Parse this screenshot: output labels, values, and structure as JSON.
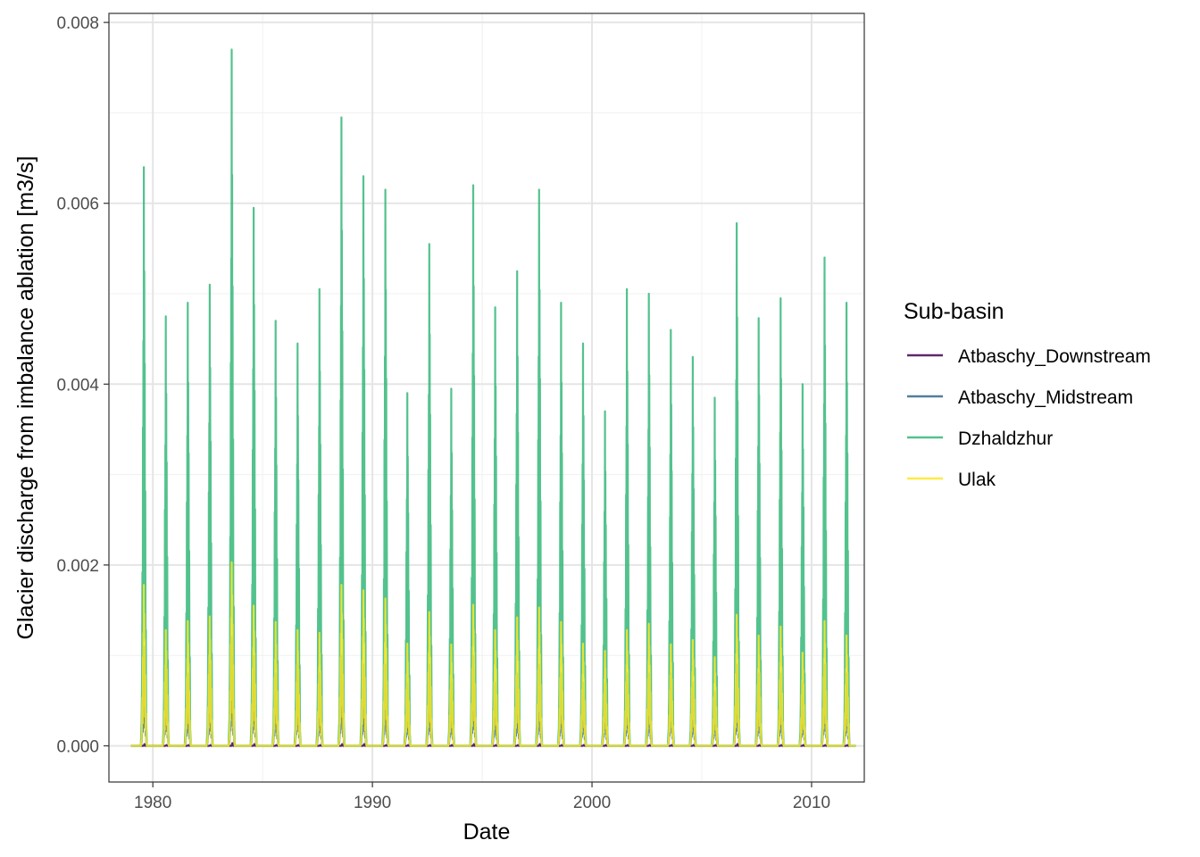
{
  "chart_data": {
    "type": "line",
    "xlabel": "Date",
    "ylabel": "Glacier discharge from imbalance ablation [m3/s]",
    "xlim": [
      1978.0,
      2012.4
    ],
    "ylim": [
      -0.0004,
      0.0081
    ],
    "x_ticks": [
      1980,
      1990,
      2000,
      2010
    ],
    "x_tick_labels": [
      "1980",
      "1990",
      "2000",
      "2010"
    ],
    "y_ticks": [
      0.0,
      0.002,
      0.004,
      0.006,
      0.008
    ],
    "y_tick_labels": [
      "0.000",
      "0.002",
      "0.004",
      "0.006",
      "0.008"
    ],
    "grid": true,
    "legend_title": "Sub-basin",
    "legend_position": "right",
    "series": [
      {
        "name": "Atbaschy_Downstream",
        "color": "#440154",
        "x": [
          "1979.0",
          "1979.58",
          "1979.62",
          "1979.66",
          "1979.72",
          "1980.58",
          "1980.62",
          "1980.66",
          "1980.72",
          "1981.58",
          "1981.62",
          "1981.66",
          "1981.72",
          "1982.58",
          "1982.62",
          "1982.66",
          "1982.72",
          "1983.58",
          "1983.62",
          "1983.66",
          "1983.72",
          "1984.58",
          "1984.62",
          "1984.66",
          "1984.72",
          "1985.58",
          "1985.62",
          "1985.66",
          "1985.72",
          "1986.58",
          "1986.62",
          "1986.66",
          "1986.72",
          "1987.58",
          "1987.62",
          "1987.66",
          "1987.72",
          "1988.58",
          "1988.62",
          "1988.66",
          "1988.72",
          "1989.58",
          "1989.62",
          "1989.66",
          "1989.72",
          "1990.58",
          "1990.62",
          "1990.66",
          "1990.72",
          "1991.58",
          "1991.62",
          "1991.66",
          "1991.72",
          "1992.58",
          "1992.62",
          "1992.66",
          "1992.72",
          "1993.58",
          "1993.62",
          "1993.66",
          "1993.72",
          "1994.58",
          "1994.62",
          "1994.66",
          "1994.72",
          "1995.58",
          "1995.62",
          "1995.66",
          "1995.72",
          "1996.58",
          "1996.62",
          "1996.66",
          "1996.72",
          "1997.58",
          "1997.62",
          "1997.66",
          "1997.72",
          "1998.58",
          "1998.62",
          "1998.66",
          "1998.72",
          "1999.58",
          "1999.62",
          "1999.66",
          "1999.72",
          "2000.58",
          "2000.62",
          "2000.66",
          "2000.72",
          "2001.58",
          "2001.62",
          "2001.66",
          "2001.72",
          "2002.58",
          "2002.62",
          "2002.66",
          "2002.72",
          "2003.58",
          "2003.62",
          "2003.66",
          "2003.72",
          "2004.58",
          "2004.62",
          "2004.66",
          "2004.72",
          "2005.58",
          "2005.62",
          "2005.66",
          "2005.72",
          "2006.58",
          "2006.62",
          "2006.66",
          "2006.72",
          "2007.58",
          "2007.62",
          "2007.66",
          "2007.72",
          "2008.58",
          "2008.62",
          "2008.66",
          "2008.72",
          "2009.58",
          "2009.62",
          "2009.66",
          "2009.72",
          "2010.58",
          "2010.62",
          "2010.66",
          "2010.72",
          "2011.58",
          "2011.62",
          "2011.66",
          "2011.72",
          "2012.0"
        ],
        "y": [
          0,
          0,
          2e-05,
          0,
          0,
          0,
          1e-05,
          0,
          0,
          0,
          1e-05,
          0,
          0,
          0,
          1e-05,
          0,
          0,
          0,
          3e-05,
          0,
          0,
          0,
          2e-05,
          0,
          0,
          0,
          1e-05,
          0,
          0,
          0,
          1e-05,
          0,
          0,
          0,
          1e-05,
          0,
          0,
          0,
          2e-05,
          0,
          0,
          0,
          2e-05,
          0,
          0,
          0,
          1e-05,
          0,
          0,
          0,
          1e-05,
          0,
          0,
          0,
          1e-05,
          0,
          0,
          0,
          1e-05,
          0,
          0,
          0,
          2e-05,
          0,
          0,
          0,
          1e-05,
          0,
          0,
          0,
          1e-05,
          0,
          0,
          0,
          2e-05,
          0,
          0,
          0,
          1e-05,
          0,
          0,
          0,
          1e-05,
          0,
          0,
          0,
          1e-05,
          0,
          0,
          0,
          1e-05,
          0,
          0,
          0,
          1e-05,
          0,
          0,
          0,
          1e-05,
          0,
          0,
          0,
          1e-05,
          0,
          0,
          0,
          1e-05,
          0,
          0,
          0,
          2e-05,
          0,
          0,
          0,
          1e-05,
          0,
          0,
          0,
          1e-05,
          0,
          0,
          0,
          1e-05,
          0,
          0,
          0,
          1e-05,
          0,
          0,
          0,
          1e-05,
          0,
          0,
          0
        ]
      },
      {
        "name": "Atbaschy_Midstream",
        "color": "#31688e",
        "peaks_x": [
          1979.6,
          1980.6,
          1981.6,
          1982.6,
          1983.6,
          1984.6,
          1985.6,
          1986.6,
          1987.6,
          1988.6,
          1989.6,
          1990.6,
          1991.6,
          1992.6,
          1993.6,
          1994.6,
          1995.6,
          1996.6,
          1997.6,
          1998.6,
          1999.6,
          2000.6,
          2001.6,
          2002.6,
          2003.6,
          2004.6,
          2005.6,
          2006.6,
          2007.6,
          2008.6,
          2009.6,
          2010.6,
          2011.6
        ],
        "peaks_y": [
          0.0011,
          0.0009,
          0.0008,
          0.0009,
          0.0012,
          0.001,
          0.0008,
          0.0009,
          0.0008,
          0.001,
          0.0009,
          0.0009,
          0.0007,
          0.0009,
          0.0007,
          0.001,
          0.0007,
          0.0008,
          0.0009,
          0.0008,
          0.0007,
          0.0007,
          0.0008,
          0.0008,
          0.0008,
          0.0007,
          0.0006,
          0.0009,
          0.0008,
          0.0008,
          0.0007,
          0.0009,
          0.0008
        ]
      },
      {
        "name": "Dzhaldzhur",
        "color": "#35b779",
        "peaks_x": [
          1979.6,
          1980.6,
          1981.6,
          1982.6,
          1983.6,
          1984.6,
          1985.6,
          1986.6,
          1987.6,
          1988.6,
          1989.6,
          1990.6,
          1991.6,
          1992.6,
          1993.6,
          1994.6,
          1995.6,
          1996.6,
          1997.6,
          1998.6,
          1999.6,
          2000.6,
          2001.6,
          2002.6,
          2003.6,
          2004.6,
          2005.6,
          2006.6,
          2007.6,
          2008.6,
          2009.6,
          2010.6,
          2011.6
        ],
        "peaks_y": [
          0.0064,
          0.00475,
          0.0049,
          0.0051,
          0.0077,
          0.00595,
          0.0047,
          0.00445,
          0.00505,
          0.00695,
          0.0063,
          0.00615,
          0.0039,
          0.00555,
          0.00395,
          0.0062,
          0.00485,
          0.00525,
          0.00615,
          0.0049,
          0.00445,
          0.0037,
          0.00505,
          0.005,
          0.0046,
          0.0043,
          0.00385,
          0.00578,
          0.00473,
          0.00495,
          0.004,
          0.0054,
          0.0049
        ]
      },
      {
        "name": "Ulak",
        "color": "#fde725",
        "peaks_x": [
          1979.6,
          1980.6,
          1981.6,
          1982.6,
          1983.6,
          1984.6,
          1985.6,
          1986.6,
          1987.6,
          1988.6,
          1989.6,
          1990.6,
          1991.6,
          1992.6,
          1993.6,
          1994.6,
          1995.6,
          1996.6,
          1997.6,
          1998.6,
          1999.6,
          2000.6,
          2001.6,
          2002.6,
          2003.6,
          2004.6,
          2005.6,
          2006.6,
          2007.6,
          2008.6,
          2009.6,
          2010.6,
          2011.6
        ],
        "peaks_y": [
          0.00178,
          0.00128,
          0.00138,
          0.00143,
          0.00203,
          0.00155,
          0.00137,
          0.00128,
          0.00125,
          0.00178,
          0.00172,
          0.00163,
          0.00113,
          0.00148,
          0.00112,
          0.00156,
          0.00128,
          0.00142,
          0.00153,
          0.00137,
          0.00113,
          0.00105,
          0.00128,
          0.00135,
          0.00112,
          0.00117,
          0.00098,
          0.00145,
          0.00122,
          0.00132,
          0.00103,
          0.00138,
          0.00122
        ]
      }
    ]
  }
}
